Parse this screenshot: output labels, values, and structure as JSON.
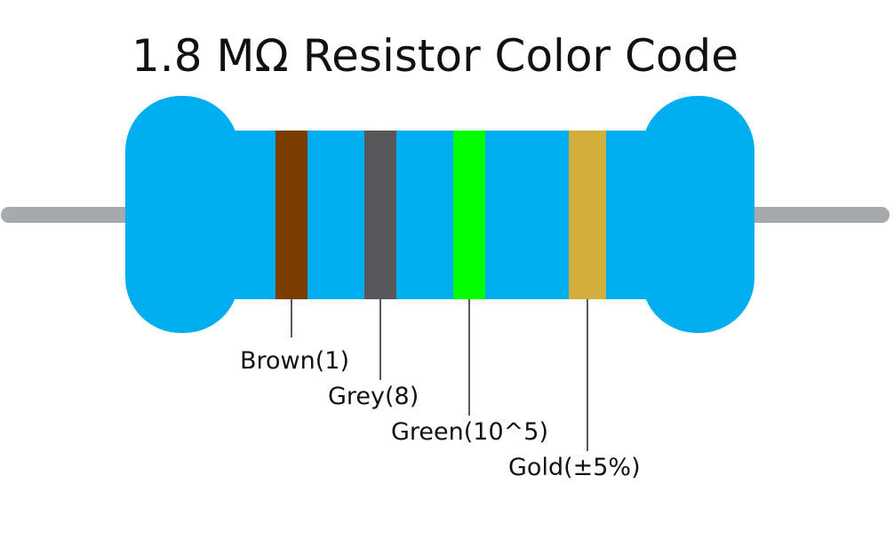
{
  "title": "1.8 MΩ Resistor Color Code",
  "bands": [
    {
      "label": "Brown(1)",
      "color": "#7a3f00"
    },
    {
      "label": "Grey(8)",
      "color": "#58585a"
    },
    {
      "label": "Green(10^5)",
      "color": "#00ff00"
    },
    {
      "label": "Gold(±5%)",
      "color": "#d4ae3a"
    }
  ]
}
